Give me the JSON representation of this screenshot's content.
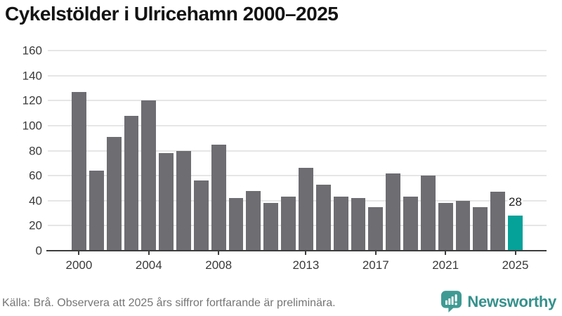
{
  "header": {
    "title": "Cykelstölder i Ulricehamn 2000–2025"
  },
  "chart_data": {
    "type": "bar",
    "title": "Cykelstölder i Ulricehamn 2000–2025",
    "categories": [
      "2000",
      "2001",
      "2002",
      "2003",
      "2004",
      "2005",
      "2006",
      "2007",
      "2008",
      "2009",
      "2010",
      "2011",
      "2012",
      "2013",
      "2014",
      "2015",
      "2016",
      "2017",
      "2018",
      "2019",
      "2020",
      "2021",
      "2022",
      "2023",
      "2024",
      "2025"
    ],
    "values": [
      127,
      64,
      91,
      108,
      120,
      78,
      80,
      56,
      85,
      42,
      48,
      38,
      43,
      66,
      53,
      43,
      42,
      35,
      62,
      43,
      60,
      38,
      40,
      35,
      47,
      28
    ],
    "xlabel": "",
    "ylabel": "",
    "ylim": [
      0,
      160
    ],
    "yticks": [
      0,
      20,
      40,
      60,
      80,
      100,
      120,
      140,
      160
    ],
    "xticks": [
      {
        "index": 0,
        "label": "2000"
      },
      {
        "index": 4,
        "label": "2004"
      },
      {
        "index": 8,
        "label": "2008"
      },
      {
        "index": 13,
        "label": "2013"
      },
      {
        "index": 17,
        "label": "2017"
      },
      {
        "index": 21,
        "label": "2021"
      },
      {
        "index": 25,
        "label": "2025"
      }
    ],
    "grid": true,
    "legend": "none",
    "bar_color": "#6d6d72",
    "grid_color": "#e6e6e6",
    "axis_color": "#3d3d3d",
    "highlight": {
      "index": 25,
      "label": "28",
      "color": "#04a299"
    }
  },
  "footer": {
    "source_note": "Källa: Brå. Observera att 2025 års siffror fortfarande är preliminära.",
    "logo": {
      "text": "Newsworthy",
      "color": "#35918c",
      "icon": "newsworthy-speech-bubble-chart-icon",
      "icon_color": "#3f9a93"
    }
  }
}
